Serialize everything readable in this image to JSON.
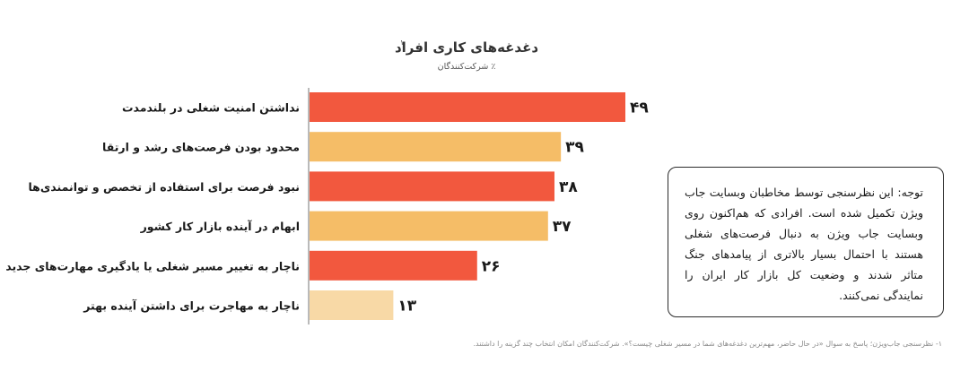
{
  "chart_data": {
    "type": "bar",
    "orientation": "horizontal",
    "title": "دغدغه‌های کاری افراد",
    "title_footnote_mark": "۱",
    "subtitle": "٪ شرکت‌کنندگان",
    "categories": [
      "نداشتن امنیت شغلی در بلندمدت",
      "محدود بودن فرصت‌های رشد و ارتقا",
      "نبود فرصت برای استفاده از تخصص و توانمندی‌ها",
      "ابهام در آینده بازار کار کشور",
      "ناچار به تغییر مسیر شغلی یا یادگیری مهارت‌های جدید",
      "ناچار به مهاجرت برای داشتن آینده بهتر"
    ],
    "values": [
      49,
      39,
      38,
      37,
      26,
      13
    ],
    "value_labels": [
      "۴۹",
      "۳۹",
      "۳۸",
      "۳۷",
      "۲۶",
      "۱۳"
    ],
    "bar_colors": [
      "#F2583E",
      "#F5BD67",
      "#F2583E",
      "#F5BD67",
      "#F2583E",
      "#F8D9A6"
    ],
    "xlim": [
      0,
      49
    ],
    "grid": false,
    "legend": "none"
  },
  "note": {
    "text": "توجه: این نظرسنجی توسط مخاطبان وبسایت جاب ویژن تکمیل شده است. افرادی که هم‌اکنون روی وبسایت جاب ویژن به دنبال فرصت‌های شغلی هستند با احتمال بسیار بالاتری از پیامدهای جنگ متاثر شدند و وضعیت کل بازار کار ایران را نمایندگی نمی‌کنند."
  },
  "footnote": {
    "text": "۱- نظرسنجی جاب‌ویژن؛ پاسخ به سوال «در حال حاضر، مهم‌ترین دغدغه‌های شما در مسیر شغلی چیست؟». شرکت‌کنندگان امکان انتخاب چند گزینه را داشتند."
  },
  "colors": {
    "accent_red": "#F2583E",
    "accent_orange": "#F5BD67",
    "accent_light": "#F8D9A6",
    "axis": "#8c8c8c"
  }
}
